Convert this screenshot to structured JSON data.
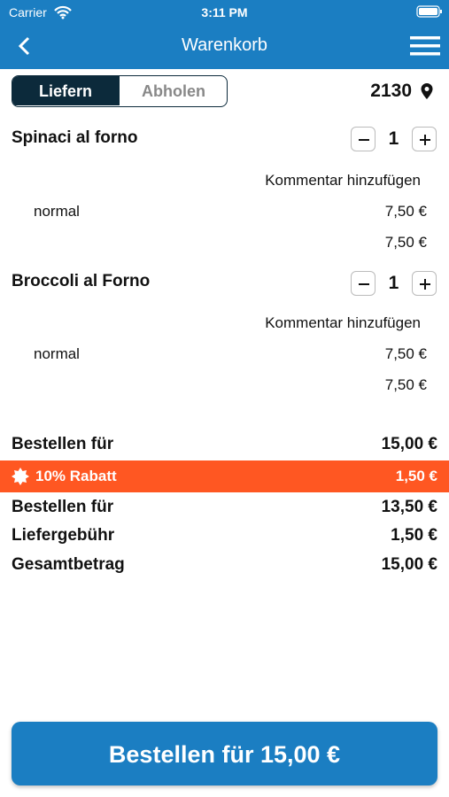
{
  "status_bar": {
    "carrier": "Carrier",
    "time": "3:11 PM"
  },
  "header": {
    "title": "Warenkorb"
  },
  "tabs": [
    "Liefern",
    "Abholen"
  ],
  "postcode": "2130",
  "items": [
    {
      "name": "Spinaci al forno",
      "quantity": 1,
      "comment": "Kommentar hinzufügen",
      "option": "normal",
      "option_price": "7,50 €",
      "total": "7,50 €"
    },
    {
      "name": "Broccoli al Forno",
      "quantity": 1,
      "comment": "Kommentar hinzufügen",
      "option": "normal",
      "option_price": "7,50 €",
      "total": "7,50 €"
    }
  ],
  "summary": {
    "subtotal": {
      "label": "Bestellen für",
      "value": "15,00 €"
    },
    "discount": {
      "label": "10% Rabatt",
      "value": "1,50 €"
    },
    "discounted": {
      "label": "Bestellen für",
      "value": "13,50 €"
    },
    "delivery_fee": {
      "label": "Liefergebühr",
      "value": "1,50 €"
    },
    "total": {
      "label": "Gesamtbetrag",
      "value": "15,00 €"
    }
  },
  "order_button": "Bestellen für 15,00 €"
}
